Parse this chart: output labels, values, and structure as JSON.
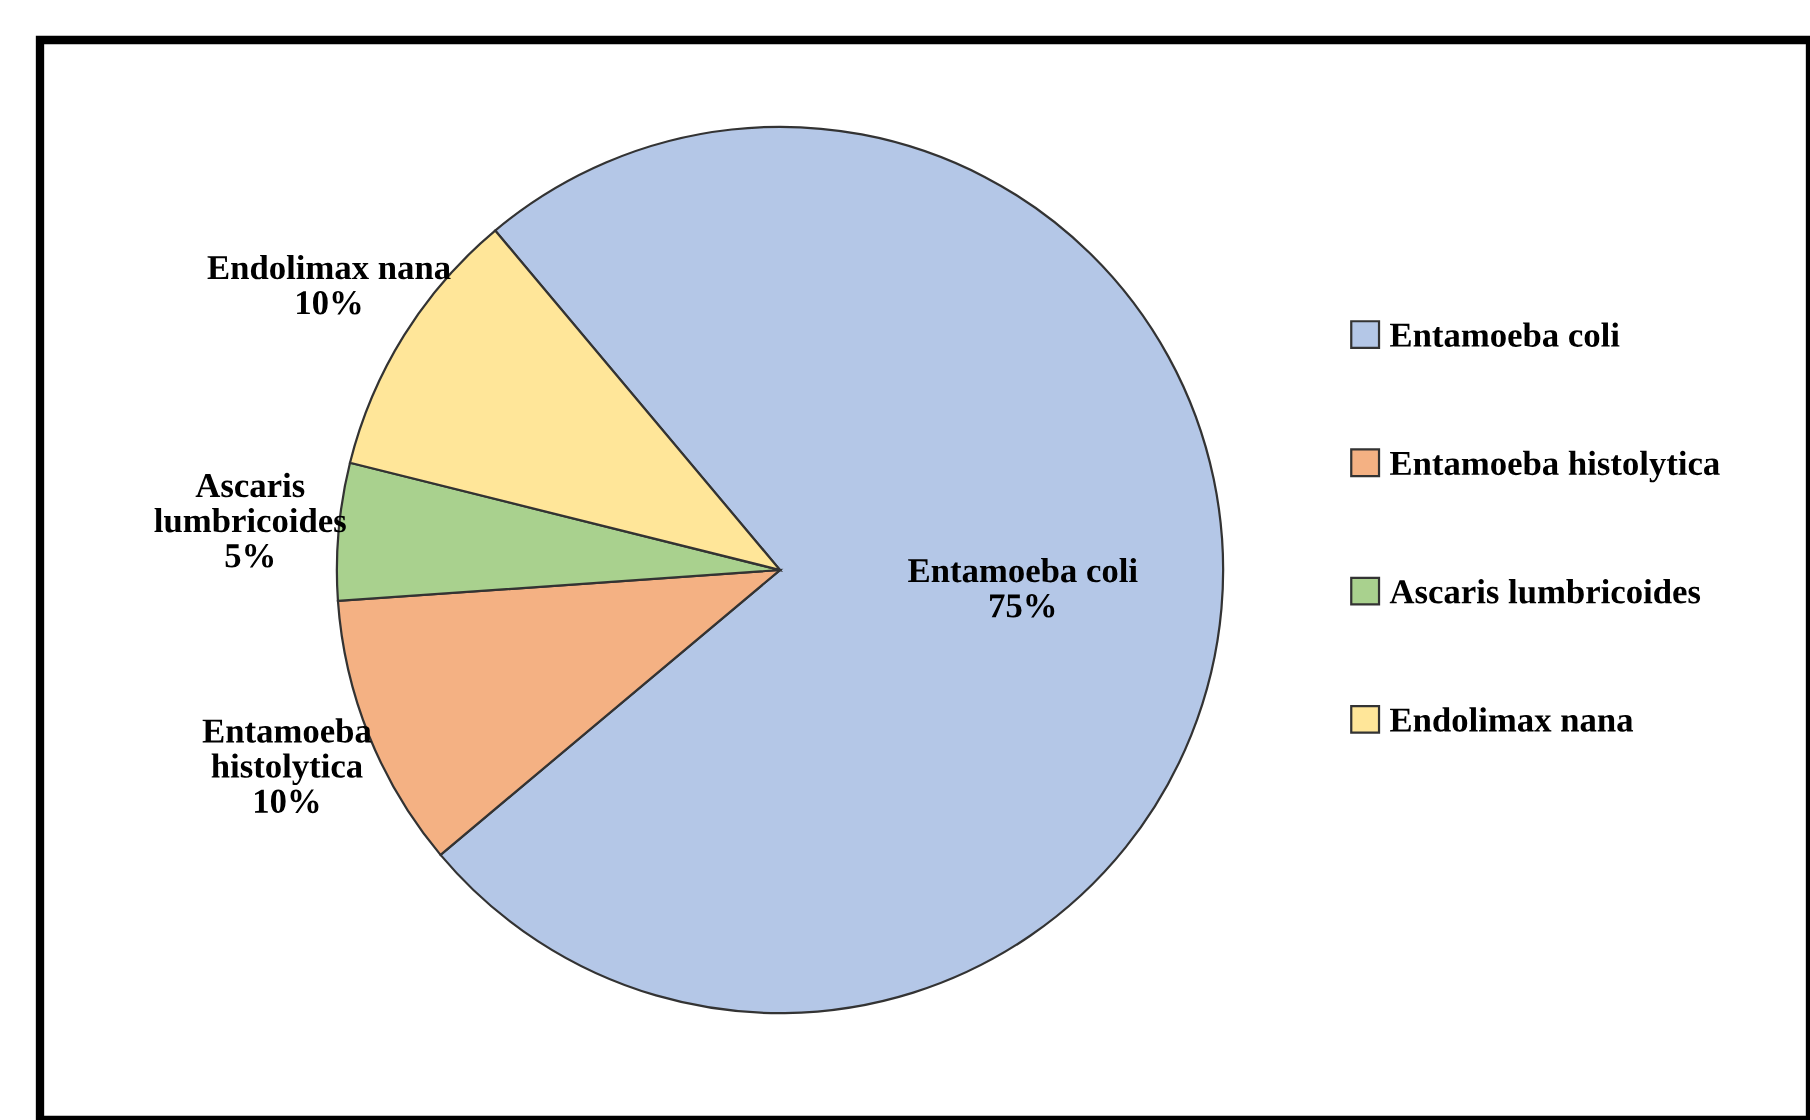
{
  "chart_data": {
    "type": "pie",
    "categories": [
      "Entamoeba coli",
      "Entamoeba histolytica",
      "Ascaris lumbricoides",
      "Endolimax nana"
    ],
    "values": [
      75,
      10,
      5,
      10
    ],
    "colors": [
      "#b4c7e7",
      "#f4b183",
      "#a9d18e",
      "#ffe699"
    ],
    "cell_labels": [
      "Entamoeba coli\n75%",
      "Entamoeba\nhistolytica\n10%",
      "Ascaris\nlumbricoides\n5%",
      "Endolimax nana\n10%"
    ],
    "legend": "right"
  }
}
